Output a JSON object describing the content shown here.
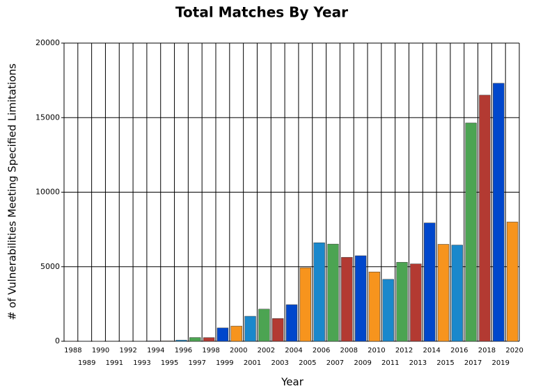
{
  "chart_data": {
    "type": "bar",
    "title": "Total Matches By Year",
    "x_label": "Year",
    "y_label": "# of Vulnerabilities Meeting Specified Limitations",
    "categories": [
      "1988",
      "1989",
      "1990",
      "1991",
      "1992",
      "1993",
      "1994",
      "1995",
      "1996",
      "1997",
      "1998",
      "1999",
      "2000",
      "2001",
      "2002",
      "2003",
      "2004",
      "2005",
      "2006",
      "2007",
      "2008",
      "2009",
      "2010",
      "2011",
      "2012",
      "2013",
      "2014",
      "2015",
      "2016",
      "2017",
      "2018",
      "2019",
      "2020"
    ],
    "values": [
      2,
      3,
      11,
      15,
      13,
      13,
      25,
      25,
      75,
      252,
      246,
      894,
      1020,
      1677,
      2156,
      1527,
      2451,
      4935,
      6610,
      6520,
      5632,
      5736,
      4652,
      4155,
      5297,
      5191,
      7939,
      6504,
      6454,
      14643,
      16509,
      17306,
      8000
    ],
    "colors": [
      "#b33a32",
      "#0047cc",
      "#f7941d",
      "#1a88cc",
      "#4ca452",
      "#b33a32",
      "#0047cc",
      "#f7941d",
      "#1a88cc",
      "#4ca452",
      "#b33a32",
      "#0047cc",
      "#f7941d",
      "#1a88cc",
      "#4ca452",
      "#b33a32",
      "#0047cc",
      "#f7941d",
      "#1a88cc",
      "#4ca452",
      "#b33a32",
      "#0047cc",
      "#f7941d",
      "#1a88cc",
      "#4ca452",
      "#b33a32",
      "#0047cc",
      "#f7941d",
      "#1a88cc",
      "#4ca452",
      "#b33a32",
      "#0047cc",
      "#f7941d"
    ],
    "ylim": [
      0,
      20000
    ],
    "yticks": [
      0,
      5000,
      10000,
      15000,
      20000
    ],
    "grid": true
  }
}
